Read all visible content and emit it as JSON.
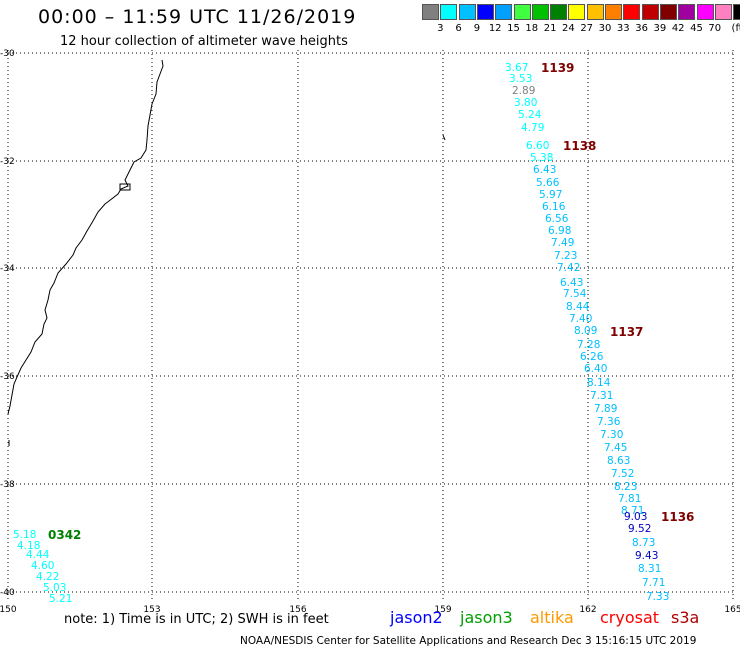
{
  "header": {
    "title": "00:00 – 11:59 UTC 11/26/2019",
    "subtitle": "12 hour collection of altimeter wave heights"
  },
  "legend": {
    "colors": [
      "#808080",
      "#00ffff",
      "#00c0ff",
      "#0000ff",
      "#00a0ff",
      "#40ff40",
      "#00c000",
      "#008000",
      "#ffff00",
      "#ffc000",
      "#ff8000",
      "#ff0000",
      "#c00000",
      "#800000",
      "#a000a0",
      "#ff00ff",
      "#ff80c0",
      "#000000"
    ],
    "labels": [
      "3",
      "6",
      "9",
      "12",
      "15",
      "18",
      "21",
      "24",
      "27",
      "30",
      "33",
      "36",
      "39",
      "42",
      "45",
      "70",
      "(ft)"
    ]
  },
  "map": {
    "lon_ticks": [
      "150",
      "153",
      "156",
      "159",
      "162",
      "165"
    ],
    "lat_ticks": [
      "-30",
      "-32",
      "-34",
      "-36",
      "-38",
      "-40"
    ]
  },
  "tracks": [
    {
      "label": "1139",
      "color": "#800000"
    },
    {
      "label": "1138",
      "color": "#800000"
    },
    {
      "label": "1137",
      "color": "#800000"
    },
    {
      "label": "1136",
      "color": "#800000"
    },
    {
      "label": "0342",
      "color": "#008000"
    }
  ],
  "observations": [
    {
      "v": "3.67",
      "c": "#00ffff"
    },
    {
      "v": "3.53",
      "c": "#00ffff"
    },
    {
      "v": "2.89",
      "c": "#808080"
    },
    {
      "v": "3.80",
      "c": "#00ffff"
    },
    {
      "v": "5.24",
      "c": "#00ffff"
    },
    {
      "v": "4.79",
      "c": "#00ffff"
    },
    {
      "v": "6.60",
      "c": "#00ffff"
    },
    {
      "v": "5.38",
      "c": "#00ffff"
    },
    {
      "v": "6.43",
      "c": "#00c0ff"
    },
    {
      "v": "5.66",
      "c": "#00c0ff"
    },
    {
      "v": "5.97",
      "c": "#00c0ff"
    },
    {
      "v": "6.16",
      "c": "#00c0ff"
    },
    {
      "v": "6.56",
      "c": "#00c0ff"
    },
    {
      "v": "6.98",
      "c": "#00c0ff"
    },
    {
      "v": "7.49",
      "c": "#00c0ff"
    },
    {
      "v": "7.23",
      "c": "#00c0ff"
    },
    {
      "v": "7.42",
      "c": "#00c0ff"
    },
    {
      "v": "6.43",
      "c": "#00c0ff"
    },
    {
      "v": "7.54",
      "c": "#00c0ff"
    },
    {
      "v": "8.44",
      "c": "#00c0ff"
    },
    {
      "v": "7.40",
      "c": "#00c0ff"
    },
    {
      "v": "8.09",
      "c": "#00c0ff"
    },
    {
      "v": "7.28",
      "c": "#00c0ff"
    },
    {
      "v": "6.26",
      "c": "#00c0ff"
    },
    {
      "v": "6.40",
      "c": "#00c0ff"
    },
    {
      "v": "8.14",
      "c": "#00c0ff"
    },
    {
      "v": "7.31",
      "c": "#00c0ff"
    },
    {
      "v": "7.89",
      "c": "#00c0ff"
    },
    {
      "v": "7.36",
      "c": "#00c0ff"
    },
    {
      "v": "7.30",
      "c": "#00c0ff"
    },
    {
      "v": "7.45",
      "c": "#00c0ff"
    },
    {
      "v": "8.63",
      "c": "#00c0ff"
    },
    {
      "v": "7.52",
      "c": "#00c0ff"
    },
    {
      "v": "8.23",
      "c": "#00c0ff"
    },
    {
      "v": "7.81",
      "c": "#00c0ff"
    },
    {
      "v": "8.71",
      "c": "#00c0ff"
    },
    {
      "v": "9.03",
      "c": "#0000c0"
    },
    {
      "v": "9.52",
      "c": "#0000c0"
    },
    {
      "v": "8.73",
      "c": "#00c0ff"
    },
    {
      "v": "9.43",
      "c": "#0000c0"
    },
    {
      "v": "8.31",
      "c": "#00c0ff"
    },
    {
      "v": "7.71",
      "c": "#00c0ff"
    },
    {
      "v": "7.33",
      "c": "#00c0ff"
    },
    {
      "v": "5.18",
      "c": "#00ffff"
    },
    {
      "v": "4.18",
      "c": "#00ffff"
    },
    {
      "v": "4.44",
      "c": "#00ffff"
    },
    {
      "v": "4.60",
      "c": "#00ffff"
    },
    {
      "v": "4.22",
      "c": "#00ffff"
    },
    {
      "v": "5.03",
      "c": "#00ffff"
    },
    {
      "v": "5.21",
      "c": "#00ffff"
    }
  ],
  "footer": {
    "note": "note:  1) Time is in UTC; 2) SWH is in feet",
    "satellites": [
      {
        "name": "jason2",
        "color": "#0000ff"
      },
      {
        "name": "jason3",
        "color": "#00a000"
      },
      {
        "name": "altika",
        "color": "#ff9900"
      },
      {
        "name": "cryosat",
        "color": "#ff0000"
      },
      {
        "name": "s3a",
        "color": "#b00000"
      }
    ],
    "credit": "NOAA/NESDIS Center for Satellite Applications and Research    Dec  3 15:16:15 UTC 2019"
  }
}
